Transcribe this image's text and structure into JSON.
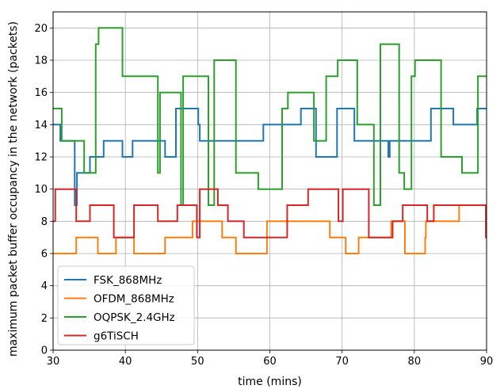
{
  "chart_data": {
    "type": "line",
    "step": "post",
    "xlabel": "time (mins)",
    "ylabel": "maximum packet buffer occupancy in the network (packets)",
    "xlim": [
      30,
      90
    ],
    "ylim": [
      0,
      21
    ],
    "xticks": [
      30,
      40,
      50,
      60,
      70,
      80,
      90
    ],
    "yticks": [
      0,
      2,
      4,
      6,
      8,
      10,
      12,
      14,
      16,
      18,
      20
    ],
    "grid": true,
    "legend_position": "lower-left",
    "series": [
      {
        "name": "FSK_868MHz",
        "color": "#1f77b4",
        "x": [
          30,
          31,
          33,
          33.3,
          34.3,
          35.1,
          35.6,
          36.5,
          37,
          38.3,
          39.6,
          40.3,
          41,
          42.3,
          45.5,
          46.2,
          47,
          48.3,
          50.1,
          50.3,
          54.7,
          58.8,
          59.1,
          62.3,
          62.9,
          64.3,
          66.4,
          69.3,
          71.7,
          76.4,
          76.6,
          82.3,
          82.5,
          85.4,
          88.7,
          90
        ],
        "y": [
          14,
          13,
          9,
          11,
          11,
          12,
          12,
          12,
          13,
          13,
          12,
          12,
          13,
          13,
          12,
          12,
          15,
          15,
          14,
          13,
          13,
          13,
          14,
          14,
          14,
          15,
          12,
          15,
          13,
          12,
          13,
          15,
          15,
          14,
          15,
          15
        ]
      },
      {
        "name": "OFDM_868MHz",
        "color": "#ff7f0e",
        "x": [
          30,
          33.2,
          36.2,
          38.1,
          38.7,
          41.2,
          45.5,
          46.4,
          49.3,
          51.3,
          53.4,
          55.3,
          58.5,
          59.6,
          63.2,
          65.8,
          68.3,
          70.5,
          72.3,
          75.4,
          76.8,
          78.7,
          79.3,
          81.5,
          81.6,
          85.6,
          86.2,
          90
        ],
        "y": [
          6,
          7,
          6,
          6,
          7,
          6,
          7,
          7,
          8,
          8,
          7,
          6,
          6,
          8,
          8,
          8,
          7,
          6,
          7,
          7,
          8,
          6,
          6,
          7,
          8,
          8,
          9,
          9
        ]
      },
      {
        "name": "OQPSK_2.4GHz",
        "color": "#2ca02c",
        "x": [
          30,
          31.2,
          34.3,
          35.9,
          36.3,
          36.7,
          39.6,
          44.5,
          44.8,
          47.7,
          48,
          51.5,
          52.3,
          55.3,
          58.4,
          61.7,
          62.5,
          64.6,
          66.1,
          67.8,
          69.4,
          72.1,
          74.4,
          75.3,
          77.9,
          78.6,
          79.6,
          80.1,
          80.8,
          83.7,
          86.6,
          88.8,
          90
        ],
        "y": [
          15,
          13,
          11,
          19,
          20,
          20,
          17,
          11,
          16,
          9,
          17,
          9,
          18,
          11,
          10,
          15,
          16,
          16,
          13,
          17,
          18,
          14,
          9,
          19,
          11,
          10,
          17,
          18,
          18,
          12,
          11,
          17,
          17
        ]
      },
      {
        "name": "g6TiSCH",
        "color": "#d62728",
        "x": [
          30,
          30.3,
          33.2,
          35.1,
          38.4,
          40.3,
          41.2,
          44.5,
          45.6,
          47.2,
          49.9,
          50.3,
          52.8,
          54.2,
          56.4,
          58.5,
          62.4,
          65.3,
          69.5,
          70.1,
          73.7,
          77,
          78.4,
          81.8,
          82.7,
          89.9,
          90
        ],
        "y": [
          8,
          10,
          8,
          9,
          7,
          7,
          9,
          8,
          8,
          9,
          7,
          10,
          9,
          8,
          7,
          7,
          9,
          10,
          8,
          10,
          7,
          8,
          9,
          8,
          9,
          7,
          7
        ]
      }
    ]
  }
}
